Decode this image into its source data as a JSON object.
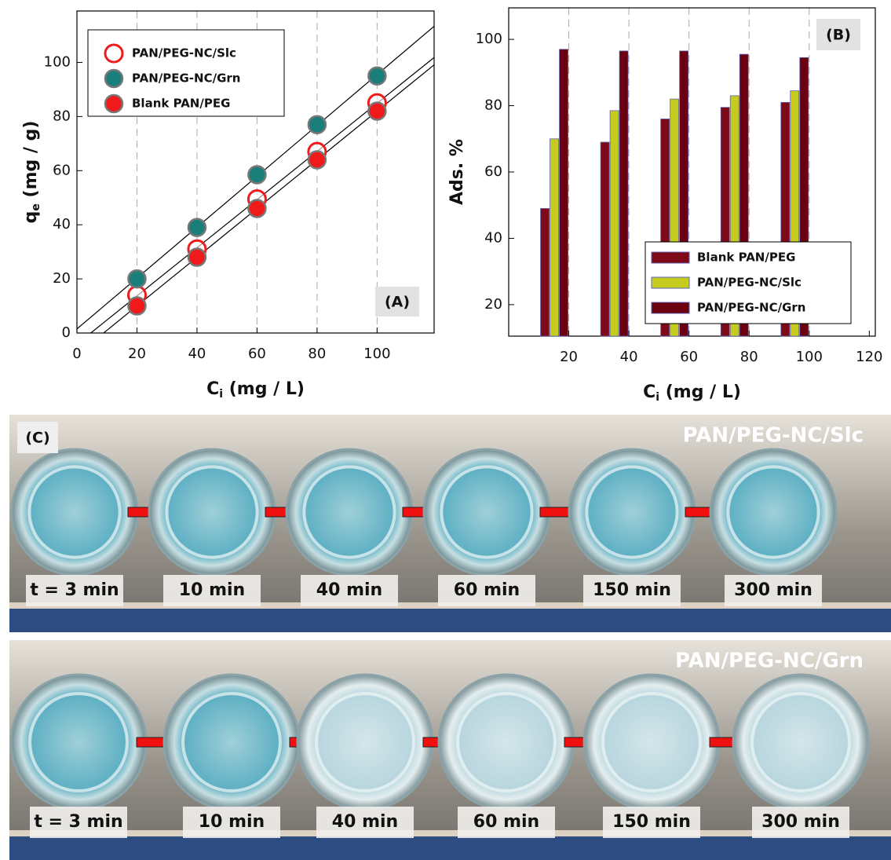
{
  "chart_data": [
    {
      "type": "scatter",
      "annotation": "(A)",
      "xlabel": "C",
      "xlabel_sub": "i",
      "xlabel_rest": " (mg / L)",
      "ylabel": "q",
      "ylabel_sub": "e",
      "ylabel_rest": " (mg / g)",
      "x": [
        20,
        40,
        60,
        80,
        100
      ],
      "series": [
        {
          "name": "PAN/PEG-NC/Slc",
          "color": "#ee1c1c",
          "filled": false,
          "values": [
            14,
            31,
            49.5,
            67,
            85
          ]
        },
        {
          "name": "PAN/PEG-NC/Grn",
          "color": "#1a7f7a",
          "filled": true,
          "values": [
            20,
            39,
            58.5,
            77,
            95
          ]
        },
        {
          "name": "Blank PAN/PEG",
          "color": "#f01a1a",
          "filled": true,
          "values": [
            10,
            28,
            46,
            64,
            82
          ]
        }
      ],
      "xlim": [
        0,
        119
      ],
      "ylim": [
        0,
        119
      ],
      "xticks": [
        0,
        20,
        40,
        60,
        80,
        100
      ],
      "yticks": [
        0,
        20,
        40,
        60,
        80,
        100
      ],
      "grid": true,
      "fit_lines": true,
      "legend": "upper left"
    },
    {
      "type": "bar",
      "annotation": "(B)",
      "xlabel": "C",
      "xlabel_sub": "i",
      "xlabel_rest": " (mg / L)",
      "ylabel": "Ads. %",
      "x": [
        20,
        40,
        60,
        80,
        100
      ],
      "series": [
        {
          "name": "Blank PAN/PEG",
          "color": "#7d0a16",
          "values": [
            49,
            69,
            76,
            79.5,
            81
          ]
        },
        {
          "name": "PAN/PEG-NC/Slc",
          "color": "#c6cc1e",
          "values": [
            70,
            78.5,
            82,
            83,
            84.5
          ]
        },
        {
          "name": "PAN/PEG-NC/Grn",
          "color": "#6a0010",
          "values": [
            97,
            96.5,
            96.5,
            95.5,
            94.5
          ]
        }
      ],
      "xlim": [
        0,
        122
      ],
      "ylim": [
        10.5,
        109.5
      ],
      "xticks": [
        20,
        40,
        60,
        80,
        100,
        120
      ],
      "yticks": [
        20,
        40,
        60,
        80,
        100
      ],
      "grid": true,
      "legend": "lower right"
    }
  ],
  "photos": {
    "label": "(C)",
    "rows": [
      {
        "title": "PAN/PEG-NC/Slc",
        "times": [
          "t = 3 min",
          "10 min",
          "40 min",
          "60 min",
          "150 min",
          "300 min"
        ]
      },
      {
        "title": "PAN/PEG-NC/Grn",
        "times": [
          "t = 3 min",
          "10 min",
          "40 min",
          "60 min",
          "150 min",
          "300 min"
        ]
      }
    ]
  }
}
